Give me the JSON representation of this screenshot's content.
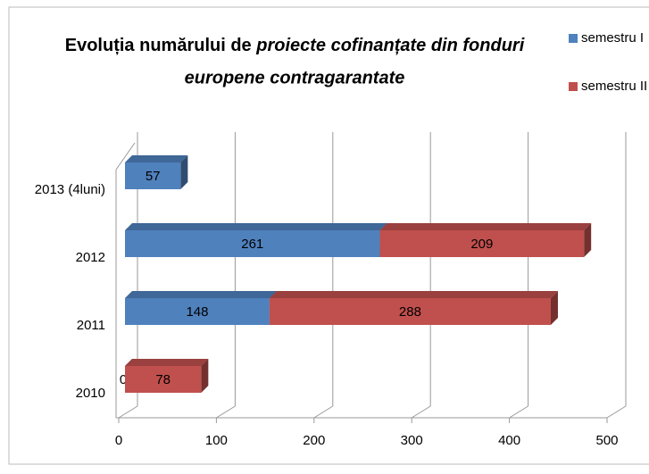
{
  "chart_data": {
    "type": "bar",
    "orientation": "horizontal",
    "stacked": true,
    "title": [
      "Evoluția numărului de",
      "proiecte cofinanțate din fonduri",
      "europene contragarantate"
    ],
    "categories": [
      "2010",
      "2011",
      "2012",
      "2013 (4luni)"
    ],
    "series": [
      {
        "name": "semestru I",
        "color": "#4f81bd",
        "values": [
          0,
          148,
          261,
          57
        ]
      },
      {
        "name": "semestru II",
        "color": "#c0504d",
        "values": [
          78,
          288,
          209,
          null
        ]
      }
    ],
    "xlim": [
      0,
      500
    ],
    "xticks": [
      0,
      100,
      200,
      300,
      400,
      500
    ],
    "grid": true,
    "legend": "right"
  }
}
